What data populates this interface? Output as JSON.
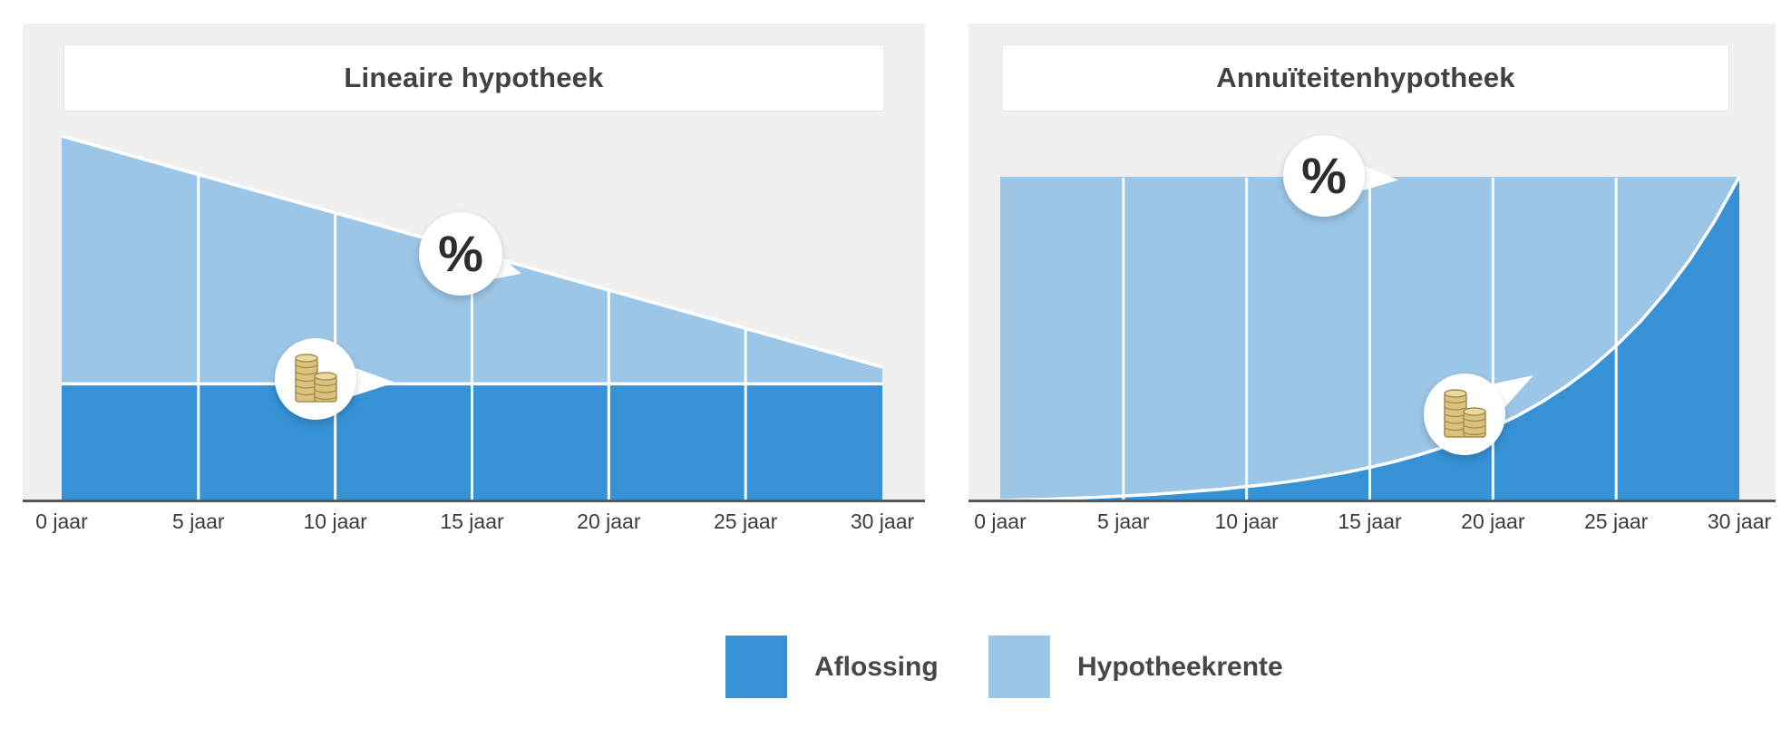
{
  "colors": {
    "aflossing": "#3791d5",
    "hypotheekrente": "#9bc6e7",
    "panel_background": "#f0f0f0",
    "axis_line": "#55575a",
    "grid_line": "#ffffff",
    "boundary_stroke": "#ffffff",
    "title_text": "#414141",
    "tick_text": "#3b3b3b",
    "bubble_text": "#2d2d2d",
    "coin_fill": "#d9c27d",
    "coin_top": "#ecd9a2",
    "coin_stroke": "#a58c4a"
  },
  "charts": [
    {
      "title": "Lineaire hypotheek"
    },
    {
      "title": "Annuïteitenhypotheek"
    }
  ],
  "callouts": {
    "percent_symbol": "%",
    "coins_icon": "coins-stack-icon"
  },
  "legend": {
    "items": [
      {
        "label": "Aflossing",
        "color": "#3791d5"
      },
      {
        "label": "Hypotheekrente",
        "color": "#9bc6e7"
      }
    ]
  },
  "chart_data": [
    {
      "type": "area",
      "title": "Lineaire hypotheek",
      "stacked": true,
      "categories": [
        "0 jaar",
        "5 jaar",
        "10 jaar",
        "15 jaar",
        "20 jaar",
        "25 jaar",
        "30 jaar"
      ],
      "tick_years": [
        0,
        5,
        10,
        15,
        20,
        25,
        30
      ],
      "x_years": [
        0,
        5,
        10,
        15,
        20,
        25,
        30
      ],
      "series": [
        {
          "name": "Aflossing",
          "color": "#3791d5",
          "values": [
            32,
            32,
            32,
            32,
            32,
            32,
            32
          ]
        },
        {
          "name": "Hypotheekrente",
          "color": "#9bc6e7",
          "values": [
            68,
            57.4,
            46.9,
            36.3,
            25.7,
            15.2,
            4.6
          ]
        }
      ],
      "xlabel": "",
      "ylabel": "",
      "ylim": [
        0,
        100
      ],
      "y_unit": "percent of plot height (no y-axis shown)",
      "grid": "vertical white gridlines every 5 years",
      "legend_position": "bottom shared",
      "annotations": [
        {
          "icon": "percent",
          "refers_to": "Hypotheekrente area"
        },
        {
          "icon": "coins",
          "refers_to": "Aflossing area"
        }
      ]
    },
    {
      "type": "area",
      "title": "Annuïteitenhypotheek",
      "stacked": true,
      "categories": [
        "0 jaar",
        "5 jaar",
        "10 jaar",
        "15 jaar",
        "20 jaar",
        "25 jaar",
        "30 jaar"
      ],
      "tick_years": [
        0,
        5,
        10,
        15,
        20,
        25,
        30
      ],
      "x_years": [
        0,
        1,
        2,
        3,
        4,
        5,
        6,
        7,
        8,
        9,
        10,
        11,
        12,
        13,
        14,
        15,
        16,
        17,
        18,
        19,
        20,
        21,
        22,
        23,
        24,
        25,
        26,
        27,
        28,
        29,
        30
      ],
      "series": [
        {
          "name": "Aflossing",
          "color": "#3791d5",
          "values": [
            0,
            0.2,
            0.4,
            0.7,
            1.0,
            1.4,
            1.8,
            2.3,
            2.9,
            3.5,
            4.3,
            5.1,
            6.1,
            7.3,
            8.6,
            10.2,
            12.0,
            14.1,
            16.5,
            19.2,
            22.5,
            26.2,
            30.5,
            35.4,
            41.1,
            47.8,
            55.4,
            64.3,
            74.5,
            86.3,
            100
          ]
        },
        {
          "name": "Hypotheekrente",
          "color": "#9bc6e7",
          "values": [
            100,
            99.8,
            99.6,
            99.3,
            99.0,
            98.6,
            98.2,
            97.7,
            97.1,
            96.5,
            95.7,
            94.9,
            93.9,
            92.7,
            91.4,
            89.8,
            88.0,
            85.9,
            83.5,
            80.8,
            77.5,
            73.8,
            69.5,
            64.6,
            58.9,
            52.2,
            44.6,
            35.7,
            25.5,
            13.7,
            0
          ]
        }
      ],
      "xlabel": "",
      "ylabel": "",
      "ylim": [
        0,
        100
      ],
      "y_unit": "percent of plot height (no y-axis shown; total payment constant at 100)",
      "grid": "vertical white gridlines every 5 years",
      "legend_position": "bottom shared",
      "annotations": [
        {
          "icon": "percent",
          "refers_to": "Hypotheekrente area"
        },
        {
          "icon": "coins",
          "refers_to": "Aflossing area"
        }
      ]
    }
  ]
}
